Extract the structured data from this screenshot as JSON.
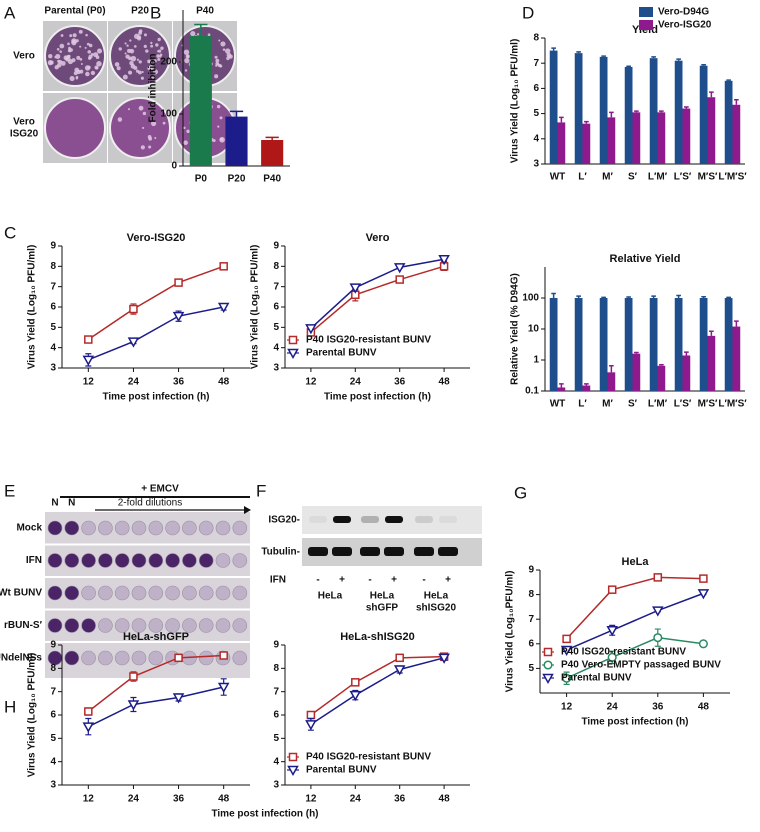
{
  "panel_labels": [
    "A",
    "B",
    "C",
    "D",
    "E",
    "F",
    "G",
    "H"
  ],
  "panel_a": {
    "column_labels": [
      "Parental (P0)",
      "P20",
      "P40"
    ],
    "row_labels": [
      [
        "Vero"
      ],
      [
        "Vero",
        "ISG20"
      ]
    ]
  },
  "panel_e": {
    "treatment": "+ EMCV",
    "dilution_note": "2-fold dilutions",
    "control_labels": [
      "N",
      "N"
    ],
    "row_labels": [
      "Mock",
      "IFN",
      "Wt BUNV",
      "rBUN-S′",
      "rBUNdelNSs"
    ]
  },
  "panel_f": {
    "band_labels": [
      "ISG20-",
      "Tubulin-"
    ],
    "treatment_label": "IFN",
    "lane_signs": [
      "-",
      "+",
      "-",
      "+",
      "-",
      "+"
    ],
    "cell_lines": [
      [
        "HeLa"
      ],
      [
        "HeLa",
        "shGFP"
      ],
      [
        "HeLa",
        "shISG20"
      ]
    ]
  },
  "chart_data": [
    {
      "type": "bar",
      "y_label": "Fold inhibition",
      "categories": [
        "P0",
        "P20",
        "P40"
      ],
      "values": [
        250,
        95,
        50
      ],
      "errors": [
        22,
        10,
        5
      ],
      "colors": [
        "#1b7a4c",
        "#1c1c8a",
        "#b01818"
      ],
      "ylim": [
        0,
        300
      ],
      "yticks": [
        0,
        100,
        200
      ]
    },
    {
      "type": "line",
      "title": "Vero-ISG20",
      "x_label": "Time post infection (h)",
      "y_label": "Virus Yield (Log₁₀ PFU/ml)",
      "x": [
        12,
        24,
        36,
        48
      ],
      "xlim": [
        5,
        55
      ],
      "xticks": [
        12,
        24,
        36,
        48
      ],
      "ylim": [
        3,
        9
      ],
      "yticks": [
        3,
        4,
        5,
        6,
        7,
        8,
        9
      ],
      "series": [
        {
          "color": "#b52a2a",
          "marker": "square",
          "values": [
            4.4,
            5.9,
            7.2,
            8.0
          ],
          "errors": [
            0.05,
            0.25,
            0.1,
            0.07
          ]
        },
        {
          "color": "#1c1c8a",
          "marker": "triangle",
          "values": [
            3.4,
            4.3,
            5.55,
            6.0
          ],
          "errors": [
            0.3,
            0.1,
            0.25,
            0.15
          ]
        }
      ]
    },
    {
      "type": "line",
      "title": "Vero",
      "x_label": "Time post infection (h)",
      "y_label": "Virus Yield (Log₁₀ PFU/ml)",
      "x": [
        12,
        24,
        36,
        48
      ],
      "xlim": [
        5,
        55
      ],
      "xticks": [
        12,
        24,
        36,
        48
      ],
      "ylim": [
        3,
        9
      ],
      "yticks": [
        3,
        4,
        5,
        6,
        7,
        8,
        9
      ],
      "legend": "lower left",
      "series": [
        {
          "name": "P40 ISG20-resistant BUNV",
          "color": "#b52a2a",
          "marker": "square",
          "values": [
            4.75,
            6.6,
            7.35,
            8.0
          ],
          "errors": [
            0.1,
            0.3,
            0.1,
            0.2
          ]
        },
        {
          "name": "Parental BUNV",
          "color": "#1c1c8a",
          "marker": "triangle",
          "values": [
            4.95,
            6.95,
            7.95,
            8.35
          ],
          "errors": [
            0.05,
            0.1,
            0.05,
            0.1
          ]
        }
      ]
    },
    {
      "type": "bar",
      "title": "Yield",
      "y_label": "Virus Yield (Log₁₀ PFU/ml)",
      "categories": [
        "WT",
        "L′",
        "M′",
        "S′",
        "L′M′",
        "L′S′",
        "M′S′",
        "L′M′S′"
      ],
      "ylim": [
        3,
        8
      ],
      "yticks": [
        3,
        4,
        5,
        6,
        7,
        8
      ],
      "legend": "upper right",
      "series": [
        {
          "name": "Vero-D94G",
          "color": "#1f4e8c",
          "values": [
            7.5,
            7.4,
            7.25,
            6.85,
            7.2,
            7.1,
            6.9,
            6.3
          ],
          "errors": [
            0.1,
            0.05,
            0.03,
            0.03,
            0.05,
            0.06,
            0.04,
            0.03
          ]
        },
        {
          "name": "Vero-ISG20",
          "color": "#8e1a8e",
          "values": [
            4.65,
            4.6,
            4.85,
            5.05,
            5.05,
            5.2,
            5.65,
            5.35
          ],
          "errors": [
            0.2,
            0.08,
            0.2,
            0.05,
            0.05,
            0.06,
            0.2,
            0.2
          ]
        }
      ]
    },
    {
      "type": "bar",
      "title": "Relative Yield",
      "y_label": "Relative Yield (% D94G)",
      "log": true,
      "categories": [
        "WT",
        "L′",
        "M′",
        "S′",
        "L′M′",
        "L′S′",
        "M′S′",
        "L′M′S′"
      ],
      "ylim": [
        0.1,
        1000
      ],
      "yticks": [
        0.1,
        1,
        10,
        100
      ],
      "series": [
        {
          "color": "#1f4e8c",
          "values": [
            100,
            100,
            100,
            100,
            100,
            100,
            100,
            100
          ],
          "errors": [
            40,
            15,
            5,
            8,
            15,
            20,
            10,
            5
          ]
        },
        {
          "color": "#8e1a8e",
          "values": [
            0.13,
            0.15,
            0.4,
            1.6,
            0.65,
            1.4,
            6,
            12
          ],
          "errors": [
            0.04,
            0.02,
            0.25,
            0.15,
            0.05,
            0.4,
            2.5,
            6
          ]
        }
      ]
    },
    {
      "type": "line",
      "title": "HeLa",
      "x_label": "Time post infection (h)",
      "y_label": "Virus Yield (Log₁₀PFU/ml)",
      "x": [
        12,
        24,
        36,
        48
      ],
      "xlim": [
        5,
        55
      ],
      "xticks": [
        12,
        24,
        36,
        48
      ],
      "ylim": [
        4,
        9
      ],
      "yticks": [
        5,
        6,
        7,
        8,
        9
      ],
      "legend": "lower left",
      "series": [
        {
          "name": "P40 ISG20-resistant BUNV",
          "color": "#b52a2a",
          "marker": "square",
          "values": [
            6.2,
            8.2,
            8.7,
            8.65
          ],
          "errors": [
            0.05,
            0.05,
            0.05,
            0.05
          ]
        },
        {
          "name": "P40 Vero-EMPTY passaged BUNV",
          "color": "#2a8a62",
          "marker": "circle",
          "values": [
            4.6,
            5.45,
            6.25,
            6.0
          ],
          "errors": [
            0.25,
            0.25,
            0.35,
            0.1
          ]
        },
        {
          "name": "Parental BUNV",
          "color": "#1c1c8a",
          "marker": "triangle",
          "values": [
            5.75,
            6.55,
            7.35,
            8.05
          ],
          "errors": [
            0.05,
            0.2,
            0.05,
            0.05
          ]
        }
      ]
    },
    {
      "type": "line",
      "title": "HeLa-shGFP",
      "x_label": "Time post infection (h)",
      "y_label": "Virus Yield (Log₁₀ PFU/ml)",
      "x": [
        12,
        24,
        36,
        48
      ],
      "xlim": [
        5,
        55
      ],
      "xticks": [
        12,
        24,
        36,
        48
      ],
      "ylim": [
        3,
        9
      ],
      "yticks": [
        3,
        4,
        5,
        6,
        7,
        8,
        9
      ],
      "series": [
        {
          "color": "#b52a2a",
          "marker": "square",
          "values": [
            6.15,
            7.65,
            8.45,
            8.55
          ],
          "errors": [
            0.15,
            0.2,
            0.15,
            0.05
          ]
        },
        {
          "color": "#1c1c8a",
          "marker": "triangle",
          "values": [
            5.5,
            6.45,
            6.75,
            7.2
          ],
          "errors": [
            0.35,
            0.3,
            0.15,
            0.35
          ]
        }
      ]
    },
    {
      "type": "line",
      "title": "HeLa-shISG20",
      "x": [
        12,
        24,
        36,
        48
      ],
      "xlim": [
        5,
        55
      ],
      "xticks": [
        12,
        24,
        36,
        48
      ],
      "ylim": [
        3,
        9
      ],
      "yticks": [
        3,
        4,
        5,
        6,
        7,
        8,
        9
      ],
      "legend": "lower left",
      "series": [
        {
          "name": "P40 ISG20-resistant BUNV",
          "color": "#b52a2a",
          "marker": "square",
          "values": [
            6.0,
            7.4,
            8.45,
            8.5
          ],
          "errors": [
            0.05,
            0.1,
            0.1,
            0.05
          ]
        },
        {
          "name": "Parental BUNV",
          "color": "#1c1c8a",
          "marker": "triangle",
          "values": [
            5.6,
            6.85,
            7.95,
            8.45
          ],
          "errors": [
            0.25,
            0.2,
            0.15,
            0.1
          ]
        }
      ]
    }
  ]
}
